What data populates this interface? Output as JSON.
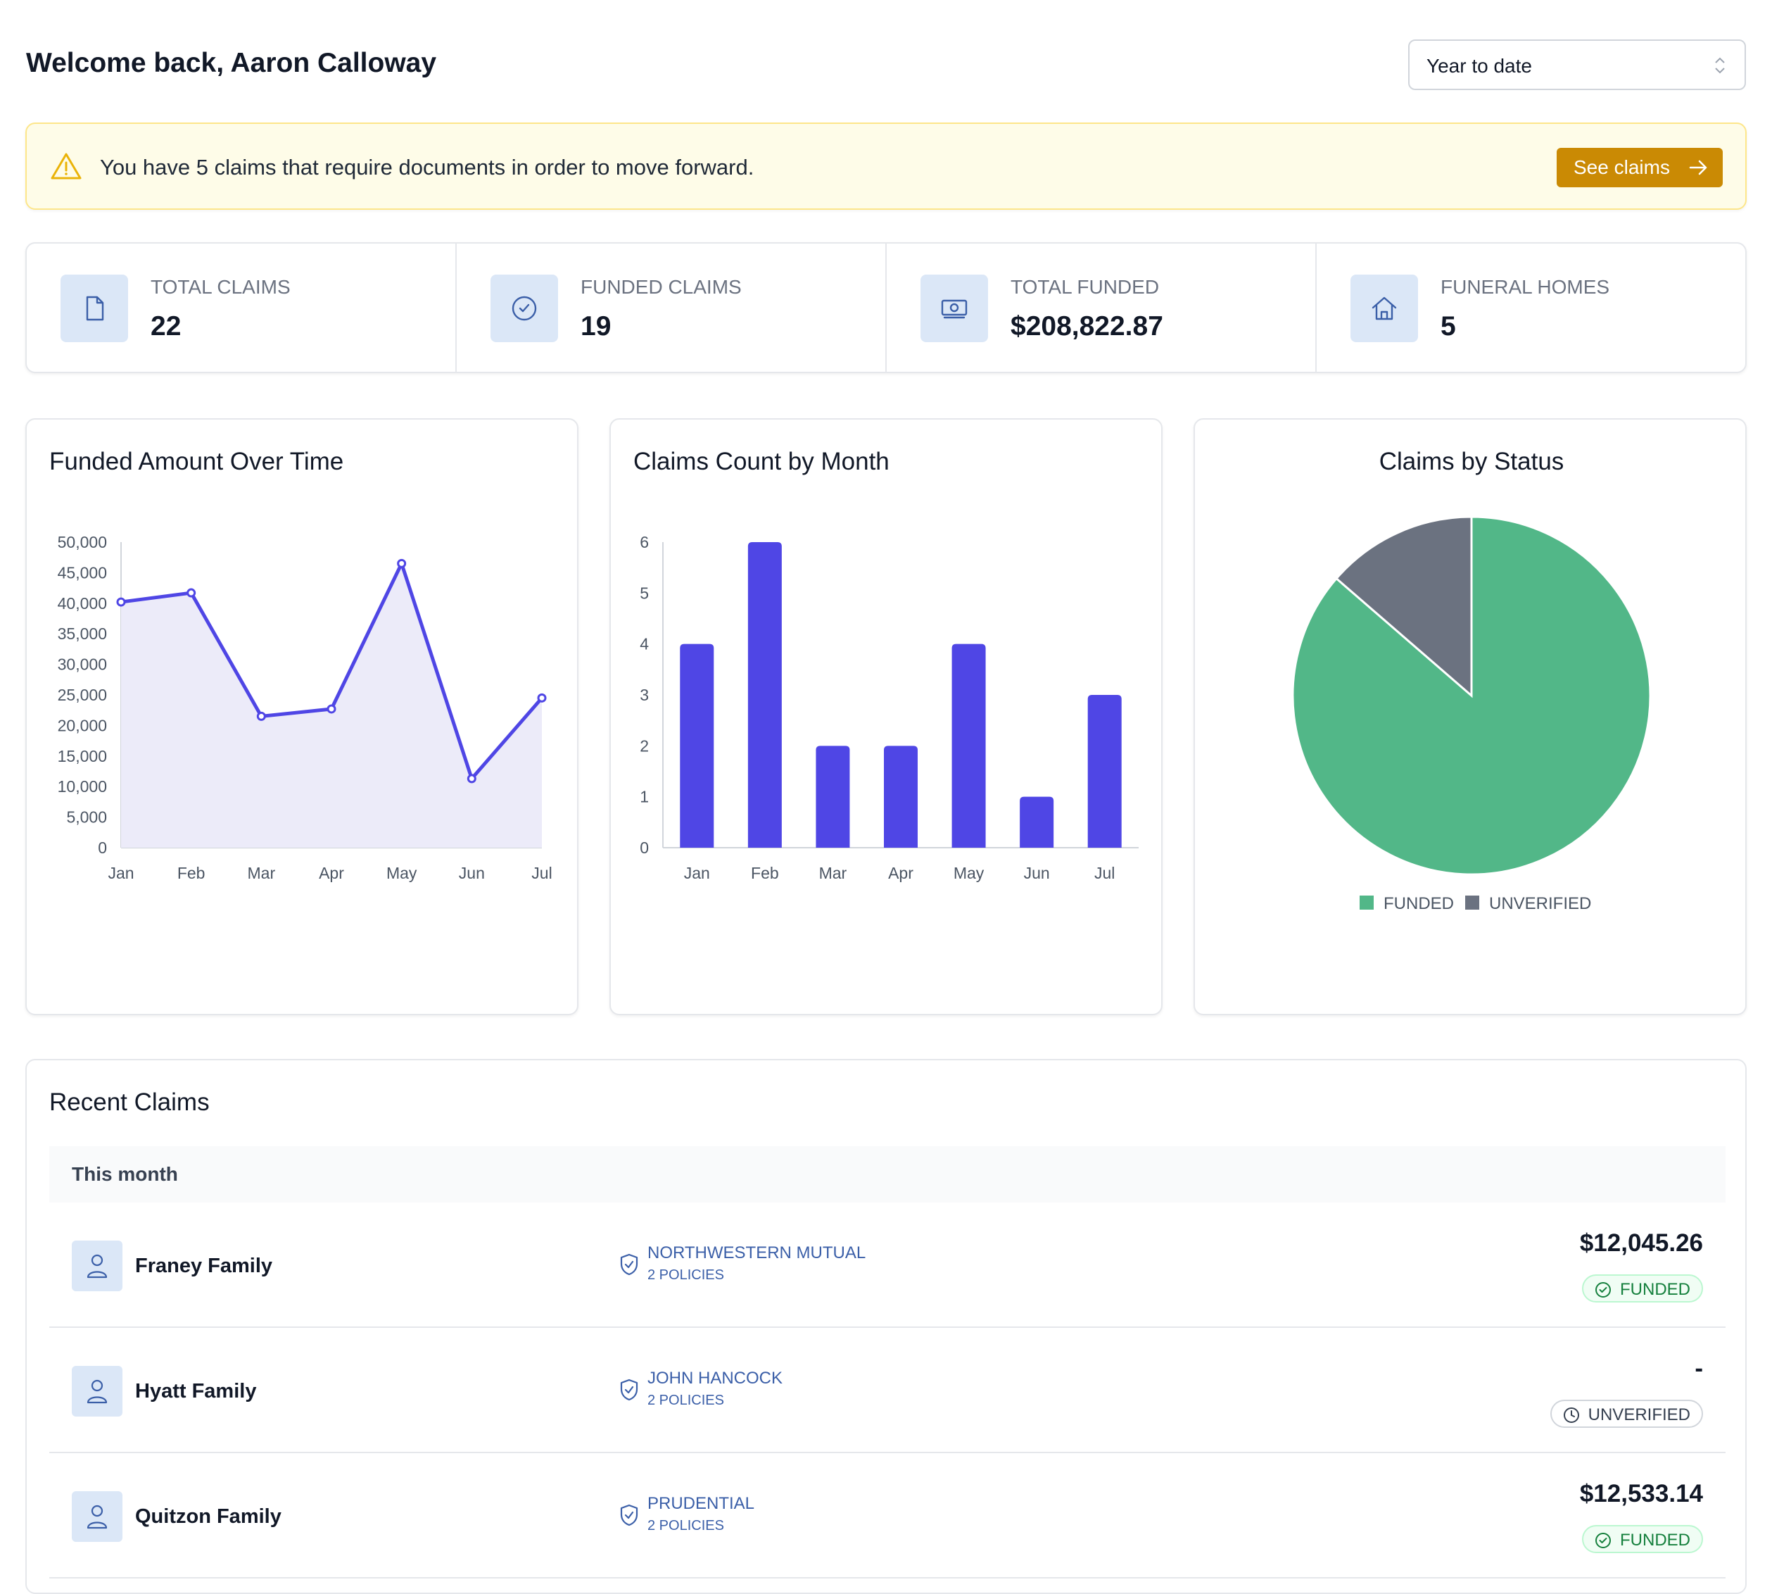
{
  "header": {
    "welcome": "Welcome back, Aaron Calloway",
    "period": "Year to date"
  },
  "alert": {
    "message": "You have 5 claims that require documents in order to move forward.",
    "button": "See claims"
  },
  "stats": [
    {
      "label": "TOTAL CLAIMS",
      "value": "22",
      "icon": "document-icon"
    },
    {
      "label": "FUNDED CLAIMS",
      "value": "19",
      "icon": "check-circle-icon"
    },
    {
      "label": "TOTAL FUNDED",
      "value": "$208,822.87",
      "icon": "money-icon"
    },
    {
      "label": "FUNERAL HOMES",
      "value": "5",
      "icon": "home-icon"
    }
  ],
  "charts": {
    "funded_title": "Funded Amount Over Time",
    "count_title": "Claims Count by Month",
    "status_title": "Claims by Status"
  },
  "chart_data": [
    {
      "type": "area",
      "title": "Funded Amount Over Time",
      "x": [
        "Jan",
        "Feb",
        "Mar",
        "Apr",
        "May",
        "Jun",
        "Jul"
      ],
      "values": [
        40200,
        41700,
        21500,
        22700,
        46500,
        11300,
        24500
      ],
      "ylim": [
        0,
        50000
      ],
      "yticks": [
        "0",
        "5,000",
        "10,000",
        "15,000",
        "20,000",
        "25,000",
        "30,000",
        "35,000",
        "40,000",
        "45,000",
        "50,000"
      ],
      "color": "#4f46e5",
      "fill": "#ecebf9"
    },
    {
      "type": "bar",
      "title": "Claims Count by Month",
      "categories": [
        "Jan",
        "Feb",
        "Mar",
        "Apr",
        "May",
        "Jun",
        "Jul"
      ],
      "values": [
        4,
        6,
        2,
        2,
        4,
        1,
        3
      ],
      "ylim": [
        0,
        6
      ],
      "yticks": [
        "0",
        "1",
        "2",
        "3",
        "4",
        "5",
        "6"
      ],
      "color": "#4f46e5"
    },
    {
      "type": "pie",
      "title": "Claims by Status",
      "labels": [
        "FUNDED",
        "UNVERIFIED"
      ],
      "values": [
        19,
        3
      ],
      "colors": [
        "#52b788",
        "#6b7280"
      ],
      "legend": "bottom"
    }
  ],
  "recent": {
    "title": "Recent Claims",
    "group": "This month",
    "rows": [
      {
        "name": "Franey Family",
        "insurer": "NORTHWESTERN MUTUAL",
        "policies": "2 POLICIES",
        "amount": "$12,045.26",
        "status": "FUNDED"
      },
      {
        "name": "Hyatt Family",
        "insurer": "JOHN HANCOCK",
        "policies": "2 POLICIES",
        "amount": "-",
        "status": "UNVERIFIED"
      },
      {
        "name": "Quitzon Family",
        "insurer": "PRUDENTIAL",
        "policies": "2 POLICIES",
        "amount": "$12,533.14",
        "status": "FUNDED"
      }
    ]
  }
}
